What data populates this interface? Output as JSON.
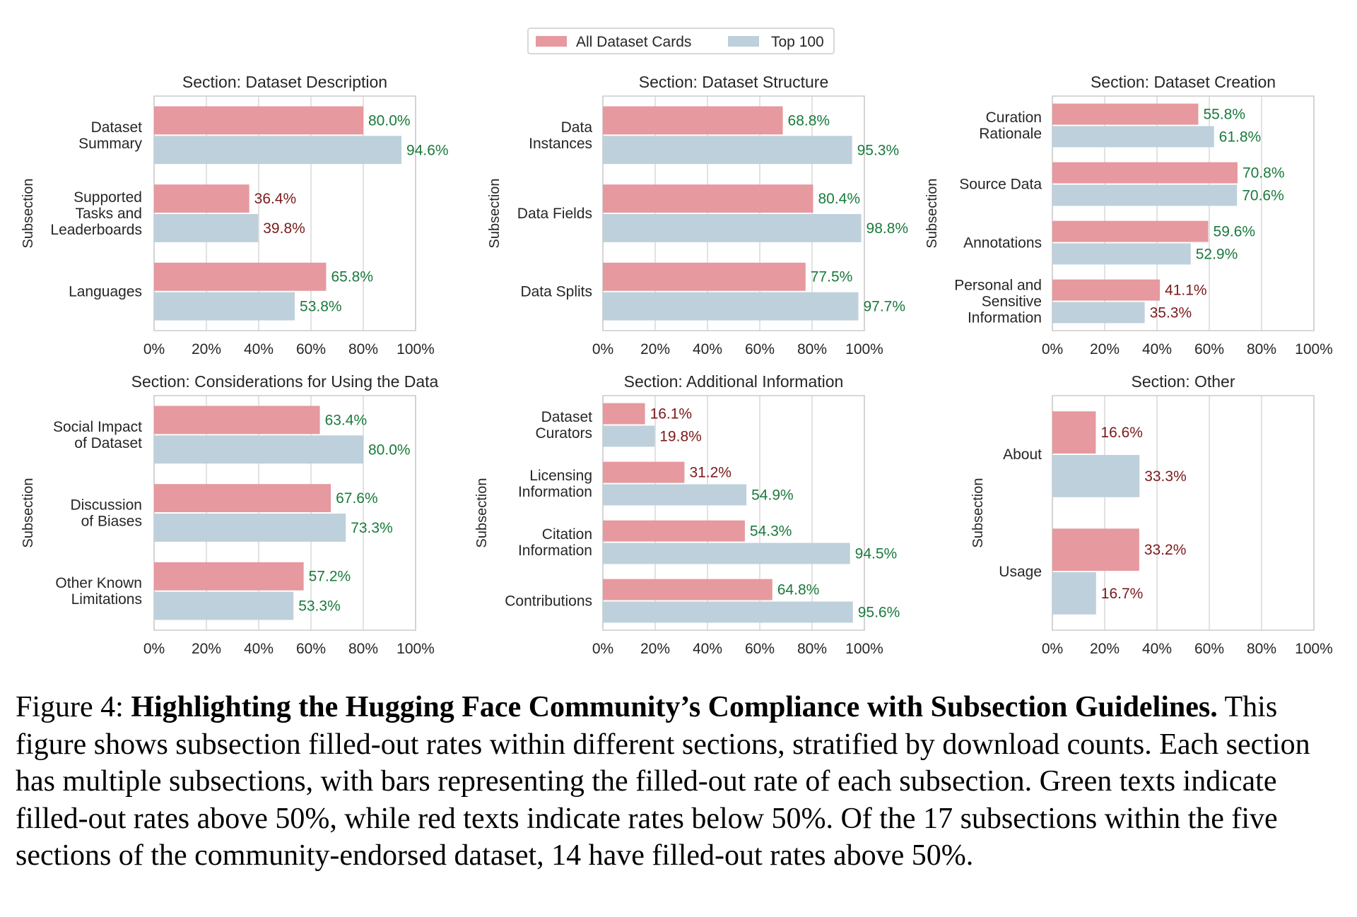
{
  "legend": [
    {
      "name": "All Dataset Cards",
      "color": "#e6999e"
    },
    {
      "name": "Top 100",
      "color": "#bdd0db"
    }
  ],
  "colors": {
    "above": "#1a7a3c",
    "below": "#7a1a1a",
    "grid": "#d9d9d9",
    "frame": "#cccccc"
  },
  "threshold": 50,
  "chart_data": [
    {
      "type": "bar",
      "orientation": "horizontal",
      "title": "Section: Dataset Description",
      "ylabel": "Subsection",
      "xlim": [
        0,
        100
      ],
      "x_ticks": [
        "0%",
        "20%",
        "40%",
        "60%",
        "80%",
        "100%"
      ],
      "categories": [
        [
          "Dataset",
          "Summary"
        ],
        [
          "Supported",
          "Tasks and",
          "Leaderboards"
        ],
        [
          "Languages"
        ]
      ],
      "series": [
        {
          "name": "All Dataset Cards",
          "values": [
            80.0,
            36.4,
            65.8
          ],
          "labels": [
            "80.0%",
            "36.4%",
            "65.8%"
          ]
        },
        {
          "name": "Top 100",
          "values": [
            94.6,
            39.8,
            53.8
          ],
          "labels": [
            "94.6%",
            "39.8%",
            "53.8%"
          ]
        }
      ]
    },
    {
      "type": "bar",
      "orientation": "horizontal",
      "title": "Section: Dataset Structure",
      "ylabel": "Subsection",
      "xlim": [
        0,
        100
      ],
      "x_ticks": [
        "0%",
        "20%",
        "40%",
        "60%",
        "80%",
        "100%"
      ],
      "categories": [
        [
          "Data",
          "Instances"
        ],
        [
          "Data Fields"
        ],
        [
          "Data Splits"
        ]
      ],
      "series": [
        {
          "name": "All Dataset Cards",
          "values": [
            68.8,
            80.4,
            77.5
          ],
          "labels": [
            "68.8%",
            "80.4%",
            "77.5%"
          ]
        },
        {
          "name": "Top 100",
          "values": [
            95.3,
            98.8,
            97.7
          ],
          "labels": [
            "95.3%",
            "98.8%",
            "97.7%"
          ]
        }
      ]
    },
    {
      "type": "bar",
      "orientation": "horizontal",
      "title": "Section: Dataset Creation",
      "ylabel": "Subsection",
      "xlim": [
        0,
        100
      ],
      "x_ticks": [
        "0%",
        "20%",
        "40%",
        "60%",
        "80%",
        "100%"
      ],
      "categories": [
        [
          "Curation",
          "Rationale"
        ],
        [
          "Source Data"
        ],
        [
          "Annotations"
        ],
        [
          "Personal and",
          "Sensitive",
          "Information"
        ]
      ],
      "series": [
        {
          "name": "All Dataset Cards",
          "values": [
            55.8,
            70.8,
            59.6,
            41.1
          ],
          "labels": [
            "55.8%",
            "70.8%",
            "59.6%",
            "41.1%"
          ]
        },
        {
          "name": "Top 100",
          "values": [
            61.8,
            70.6,
            52.9,
            35.3
          ],
          "labels": [
            "61.8%",
            "70.6%",
            "52.9%",
            "35.3%"
          ]
        }
      ]
    },
    {
      "type": "bar",
      "orientation": "horizontal",
      "title": "Section: Considerations for Using the Data",
      "ylabel": "Subsection",
      "xlim": [
        0,
        100
      ],
      "x_ticks": [
        "0%",
        "20%",
        "40%",
        "60%",
        "80%",
        "100%"
      ],
      "categories": [
        [
          "Social Impact",
          "of Dataset"
        ],
        [
          "Discussion",
          "of Biases"
        ],
        [
          "Other Known",
          "Limitations"
        ]
      ],
      "series": [
        {
          "name": "All Dataset Cards",
          "values": [
            63.4,
            67.6,
            57.2
          ],
          "labels": [
            "63.4%",
            "67.6%",
            "57.2%"
          ]
        },
        {
          "name": "Top 100",
          "values": [
            80.0,
            73.3,
            53.3
          ],
          "labels": [
            "80.0%",
            "73.3%",
            "53.3%"
          ]
        }
      ]
    },
    {
      "type": "bar",
      "orientation": "horizontal",
      "title": "Section: Additional Information",
      "ylabel": "Subsection",
      "xlim": [
        0,
        100
      ],
      "x_ticks": [
        "0%",
        "20%",
        "40%",
        "60%",
        "80%",
        "100%"
      ],
      "categories": [
        [
          "Dataset",
          "Curators"
        ],
        [
          "Licensing",
          "Information"
        ],
        [
          "Citation",
          "Information"
        ],
        [
          "Contributions"
        ]
      ],
      "series": [
        {
          "name": "All Dataset Cards",
          "values": [
            16.1,
            31.2,
            54.3,
            64.8
          ],
          "labels": [
            "16.1%",
            "31.2%",
            "54.3%",
            "64.8%"
          ]
        },
        {
          "name": "Top 100",
          "values": [
            19.8,
            54.9,
            94.5,
            95.6
          ],
          "labels": [
            "19.8%",
            "54.9%",
            "94.5%",
            "95.6%"
          ]
        }
      ]
    },
    {
      "type": "bar",
      "orientation": "horizontal",
      "title": "Section: Other",
      "ylabel": "Subsection",
      "xlim": [
        0,
        100
      ],
      "x_ticks": [
        "0%",
        "20%",
        "40%",
        "60%",
        "80%",
        "100%"
      ],
      "categories": [
        [
          "About"
        ],
        [
          "Usage"
        ]
      ],
      "series": [
        {
          "name": "All Dataset Cards",
          "values": [
            16.6,
            33.2
          ],
          "labels": [
            "16.6%",
            "33.2%"
          ]
        },
        {
          "name": "Top 100",
          "values": [
            33.3,
            16.7
          ],
          "labels": [
            "33.3%",
            "16.7%"
          ]
        }
      ]
    }
  ],
  "caption": {
    "prefix": "Figure 4: ",
    "bold": "Highlighting the Hugging Face Community’s Compliance with Subsection Guidelines.",
    "body": " This figure shows subsection filled-out rates within different sections, stratified by download counts. Each section has multiple subsections, with bars representing the filled-out rate of each subsection. Green texts indicate filled-out rates above 50%, while red texts indicate rates below 50%. Of the 17 subsections within the five sections of the community-endorsed dataset, 14 have filled-out rates above 50%."
  }
}
